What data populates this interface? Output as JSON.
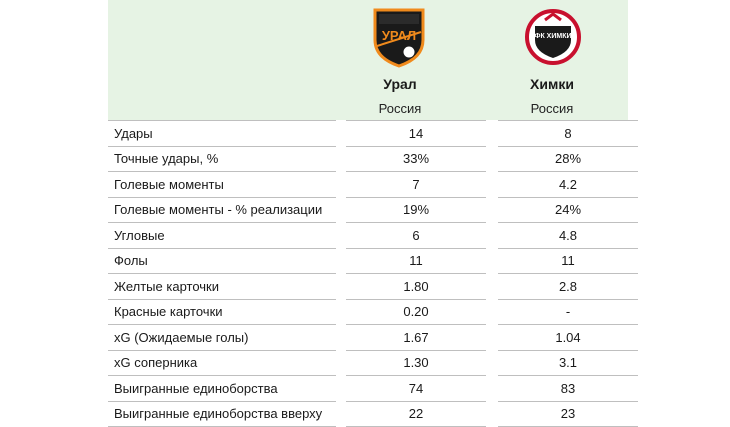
{
  "teams": [
    {
      "name": "Урал",
      "country": "Россия",
      "logo": "ural-club-crest"
    },
    {
      "name": "Химки",
      "country": "Россия",
      "logo": "khimki-club-crest"
    }
  ],
  "logo_text": {
    "ural": "УРАЛ",
    "khimki": "ФК ХИМКИ"
  },
  "colors": {
    "header_bg": "#e6f3e4",
    "ural_orange": "#f08a1c",
    "khimki_red": "#c8102e"
  },
  "rows": [
    {
      "label": "Удары",
      "v1": "14",
      "v2": "8"
    },
    {
      "label": "Точные удары, %",
      "v1": "33%",
      "v2": "28%"
    },
    {
      "label": "Голевые моменты",
      "v1": "7",
      "v2": "4.2"
    },
    {
      "label": "Голевые моменты - % реализации",
      "v1": "19%",
      "v2": "24%"
    },
    {
      "label": "Угловые",
      "v1": "6",
      "v2": "4.8"
    },
    {
      "label": "Фолы",
      "v1": "11",
      "v2": "11"
    },
    {
      "label": "Желтые карточки",
      "v1": "1.80",
      "v2": "2.8"
    },
    {
      "label": "Красные карточки",
      "v1": "0.20",
      "v2": "-"
    },
    {
      "label": "xG (Ожидаемые голы)",
      "v1": "1.67",
      "v2": "1.04"
    },
    {
      "label": "xG соперника",
      "v1": "1.30",
      "v2": "3.1"
    },
    {
      "label": "Выигранные единоборства",
      "v1": "74",
      "v2": "83"
    },
    {
      "label": "Выигранные единоборства вверху",
      "v1": "22",
      "v2": "23"
    }
  ]
}
